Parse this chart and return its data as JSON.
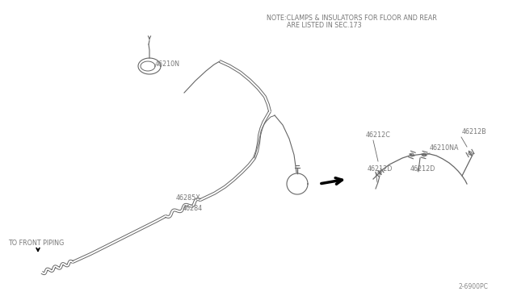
{
  "bg_color": "#ffffff",
  "line_color": "#666666",
  "text_color": "#777777",
  "note_line1": "NOTE:CLAMPS & INSULATORS FOR FLOOR AND REAR",
  "note_line2": "ARE LISTED IN SEC.173",
  "part_code": "2-6900PC",
  "figsize": [
    6.4,
    3.72
  ],
  "dpi": 100
}
